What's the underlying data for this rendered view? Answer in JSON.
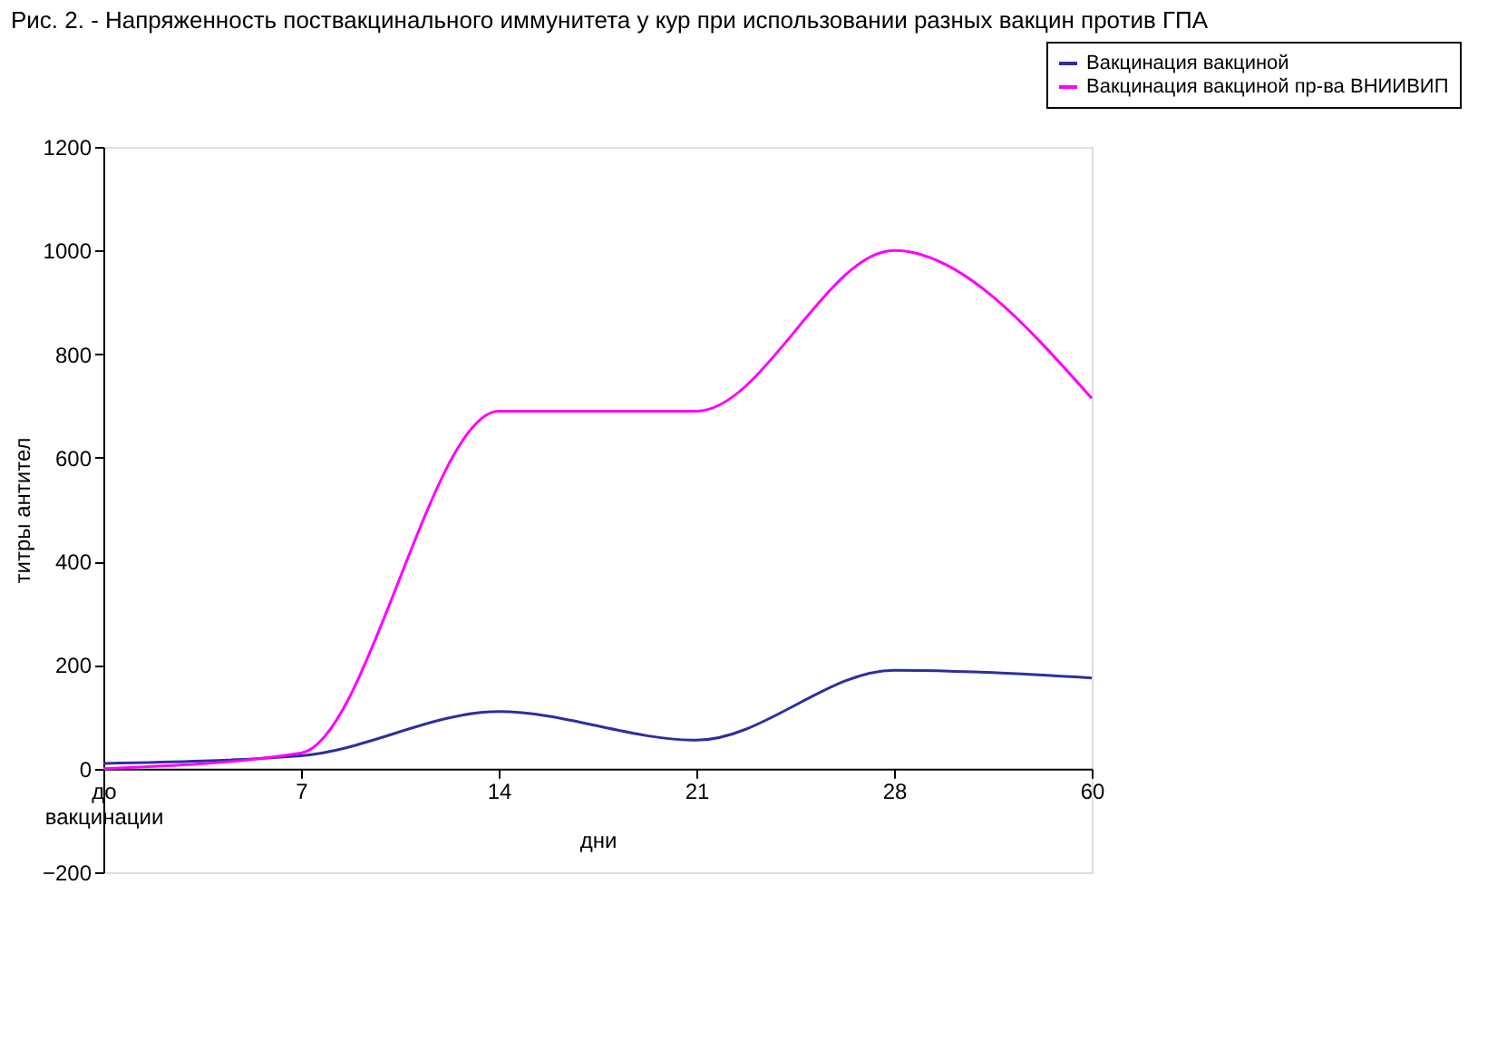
{
  "chart_data": {
    "type": "line",
    "title": "Рис. 2. - Напряженность поствакцинального иммунитета у кур при использовании разных вакцин против ГПА",
    "xlabel": "дни",
    "ylabel": "титры антител",
    "categories": [
      "до вакцинации",
      "7",
      "14",
      "21",
      "28",
      "60"
    ],
    "series": [
      {
        "name": "Вакцинация вакциной",
        "color": "#2e2e9e",
        "values": [
          10,
          25,
          110,
          55,
          190,
          175
        ]
      },
      {
        "name": "Вакцинация вакциной пр-ва ВНИИВИП",
        "color": "#ff00ff",
        "values": [
          0,
          30,
          690,
          690,
          1000,
          715
        ]
      }
    ],
    "ylim": [
      -200,
      1200
    ],
    "yticks": [
      -200,
      0,
      200,
      400,
      600,
      800,
      1000,
      1200
    ],
    "grid": false,
    "legend": "top right",
    "line_style": "solid",
    "marker": "none"
  }
}
